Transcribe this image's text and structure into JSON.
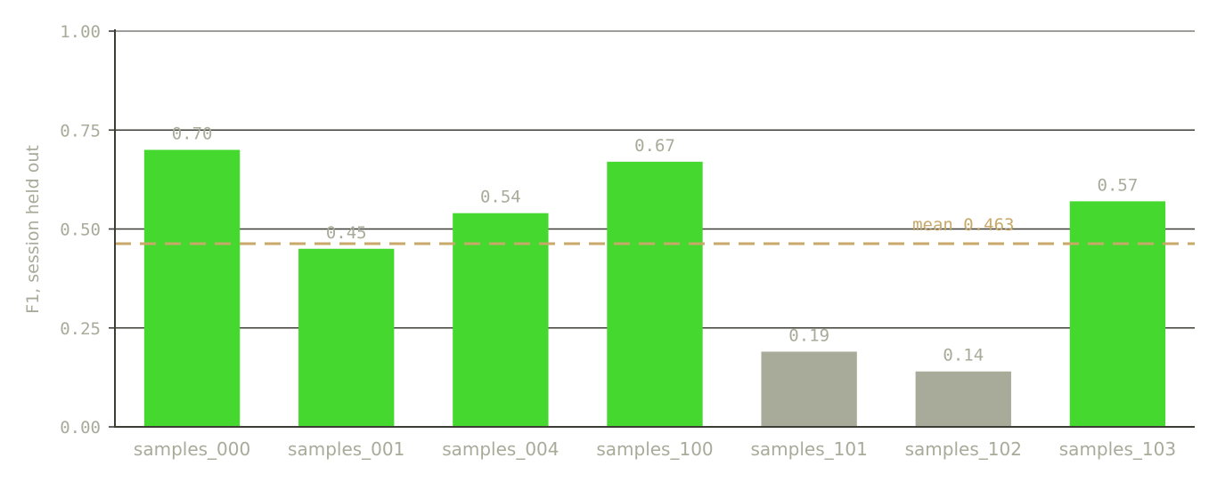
{
  "chart_data": {
    "type": "bar",
    "categories": [
      "samples_000",
      "samples_001",
      "samples_004",
      "samples_100",
      "samples_101",
      "samples_102",
      "samples_103"
    ],
    "values": [
      0.7,
      0.45,
      0.54,
      0.67,
      0.19,
      0.14,
      0.57
    ],
    "value_labels": [
      "0.70",
      "0.45",
      "0.54",
      "0.67",
      "0.19",
      "0.14",
      "0.57"
    ],
    "ylabel": "F1, session held out",
    "ylim": [
      0,
      1.0
    ],
    "yticks": [
      0.0,
      0.25,
      0.5,
      0.75,
      1.0
    ],
    "ytick_labels": [
      "0.00",
      "0.25",
      "0.50",
      "0.75",
      "1.00"
    ],
    "grid": true,
    "reference_line": {
      "value": 0.463,
      "label": "mean 0.463",
      "style": "dashed",
      "color": "#c8a96a"
    },
    "bar_colors": [
      "#45d82f",
      "#45d82f",
      "#45d82f",
      "#45d82f",
      "#a9ab9a",
      "#a9ab9a",
      "#45d82f"
    ]
  }
}
